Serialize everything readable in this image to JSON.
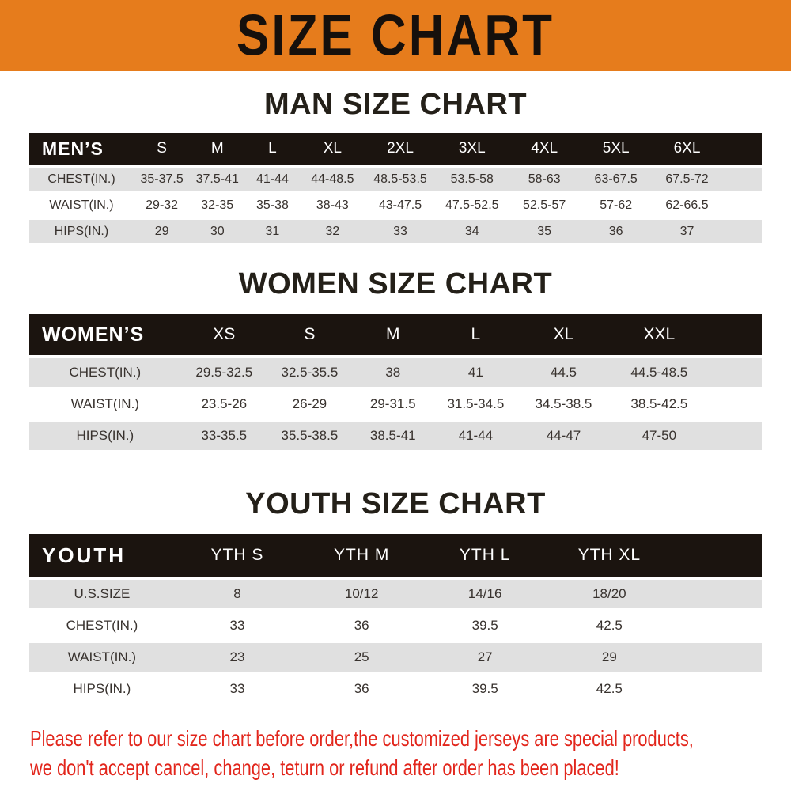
{
  "banner": {
    "title": "SIZE CHART"
  },
  "colors": {
    "banner_bg": "#E67C1C",
    "header_bg": "#1B140F",
    "row_alt_bg": "#E0E0E0",
    "footnote_red": "#E2261C"
  },
  "men": {
    "heading": "MAN SIZE CHART",
    "header_label": "MEN’S",
    "columns": [
      "S",
      "M",
      "L",
      "XL",
      "2XL",
      "3XL",
      "4XL",
      "5XL",
      "6XL"
    ],
    "rows": [
      {
        "label": "CHEST(IN.)",
        "values": [
          "35-37.5",
          "37.5-41",
          "41-44",
          "44-48.5",
          "48.5-53.5",
          "53.5-58",
          "58-63",
          "63-67.5",
          "67.5-72"
        ]
      },
      {
        "label": "WAIST(IN.)",
        "values": [
          "29-32",
          "32-35",
          "35-38",
          "38-43",
          "43-47.5",
          "47.5-52.5",
          "52.5-57",
          "57-62",
          "62-66.5"
        ]
      },
      {
        "label": "HIPS(IN.)",
        "values": [
          "29",
          "30",
          "31",
          "32",
          "33",
          "34",
          "35",
          "36",
          "37"
        ]
      }
    ]
  },
  "women": {
    "heading": "WOMEN SIZE CHART",
    "header_label": "WOMEN’S",
    "columns": [
      "XS",
      "S",
      "M",
      "L",
      "XL",
      "XXL"
    ],
    "rows": [
      {
        "label": "CHEST(IN.)",
        "values": [
          "29.5-32.5",
          "32.5-35.5",
          "38",
          "41",
          "44.5",
          "44.5-48.5"
        ]
      },
      {
        "label": "WAIST(IN.)",
        "values": [
          "23.5-26",
          "26-29",
          "29-31.5",
          "31.5-34.5",
          "34.5-38.5",
          "38.5-42.5"
        ]
      },
      {
        "label": "HIPS(IN.)",
        "values": [
          "33-35.5",
          "35.5-38.5",
          "38.5-41",
          "41-44",
          "44-47",
          "47-50"
        ]
      }
    ]
  },
  "youth": {
    "heading": "YOUTH SIZE CHART",
    "header_label": "YOUTH",
    "columns": [
      "YTH S",
      "YTH M",
      "YTH L",
      "YTH XL"
    ],
    "rows": [
      {
        "label": "U.S.SIZE",
        "values": [
          "8",
          "10/12",
          "14/16",
          "18/20"
        ]
      },
      {
        "label": "CHEST(IN.)",
        "values": [
          "33",
          "36",
          "39.5",
          "42.5"
        ]
      },
      {
        "label": "WAIST(IN.)",
        "values": [
          "23",
          "25",
          "27",
          "29"
        ]
      },
      {
        "label": "HIPS(IN.)",
        "values": [
          "33",
          "36",
          "39.5",
          "42.5"
        ]
      }
    ]
  },
  "footnote": {
    "lines": [
      "Please refer to our size chart before order,the customized jerseys are special products,",
      "we don't accept cancel, change, teturn or refund after order has been placed!"
    ]
  }
}
